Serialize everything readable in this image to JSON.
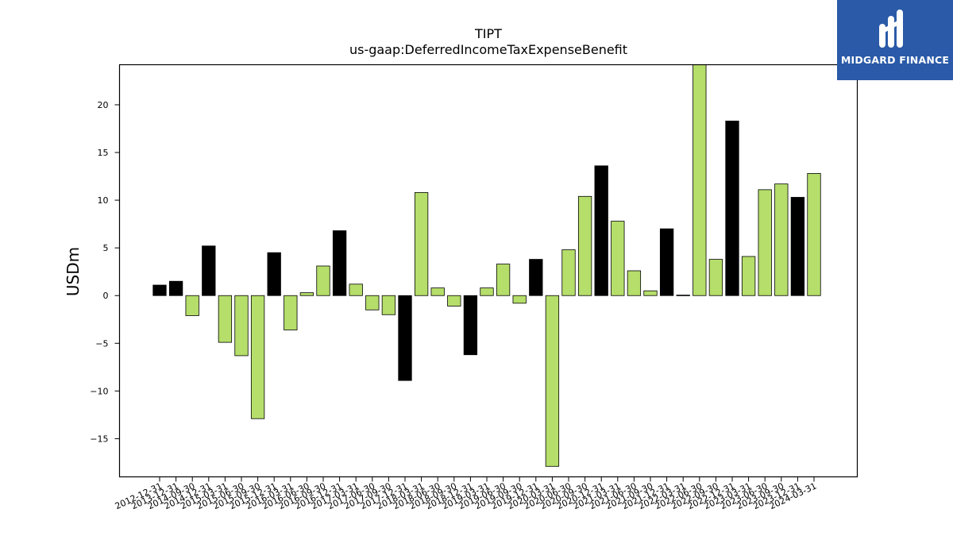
{
  "chart_data": {
    "type": "bar",
    "title": "TIPT",
    "subtitle": "us-gaap:DeferredIncomeTaxExpenseBenefit",
    "ylabel": "USDm",
    "xlabel": "",
    "ylim": [
      -19,
      24.2
    ],
    "yticks": [
      -15,
      -10,
      -5,
      0,
      5,
      10,
      15,
      20
    ],
    "grid": false,
    "categories": [
      "2012-12-31",
      "2013-12-31",
      "2014-09-30",
      "2014-12-31",
      "2015-03-31",
      "2015-06-30",
      "2015-09-30",
      "2015-12-31",
      "2016-03-31",
      "2016-06-30",
      "2016-09-30",
      "2016-12-31",
      "2017-03-31",
      "2017-06-30",
      "2017-09-30",
      "2017-12-31",
      "2018-03-31",
      "2018-06-30",
      "2018-09-30",
      "2018-12-31",
      "2019-03-31",
      "2019-06-30",
      "2019-09-30",
      "2019-12-31",
      "2020-03-31",
      "2020-06-30",
      "2020-09-30",
      "2020-12-31",
      "2021-03-31",
      "2021-06-30",
      "2021-09-30",
      "2021-12-31",
      "2022-03-31",
      "2022-06-30",
      "2022-09-30",
      "2022-12-31",
      "2023-03-31",
      "2023-06-30",
      "2023-09-30",
      "2023-12-31",
      "2024-03-31"
    ],
    "values": [
      1.1,
      1.5,
      -2.1,
      5.2,
      -4.9,
      -6.3,
      -12.9,
      4.5,
      -3.6,
      0.3,
      3.1,
      6.8,
      1.2,
      -1.5,
      -2.0,
      -8.9,
      10.8,
      0.8,
      -1.1,
      -6.2,
      0.8,
      3.3,
      -0.8,
      3.8,
      -17.9,
      4.8,
      10.4,
      13.6,
      7.8,
      2.6,
      0.5,
      7.0,
      0.05,
      24.2,
      3.8,
      18.3,
      4.1,
      11.1,
      11.7,
      10.3,
      12.8
    ],
    "annual": [
      true,
      true,
      false,
      true,
      false,
      false,
      false,
      true,
      false,
      false,
      false,
      true,
      false,
      false,
      false,
      true,
      false,
      false,
      false,
      true,
      false,
      false,
      false,
      true,
      false,
      false,
      false,
      true,
      false,
      false,
      false,
      true,
      false,
      false,
      false,
      true,
      false,
      false,
      false,
      true,
      false
    ],
    "colors": {
      "annual": "#000000",
      "quarterly": "#b5de6a"
    }
  },
  "logo": {
    "text": "MIDGARD FINANCE",
    "background": "#2a5aa8"
  }
}
